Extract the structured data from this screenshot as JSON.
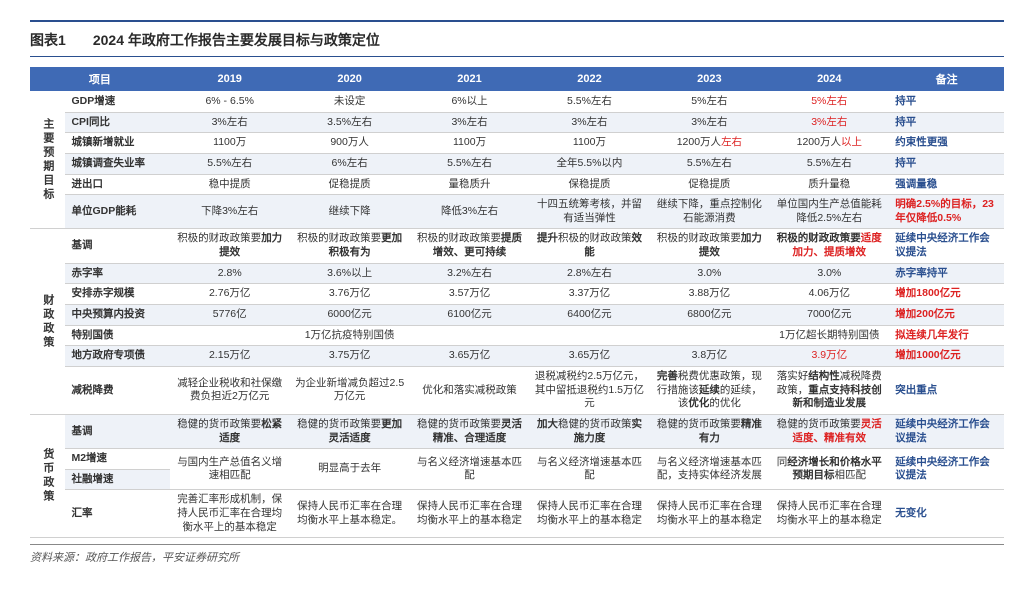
{
  "title": {
    "label": "图表1",
    "text": "2024 年政府工作报告主要发展目标与政策定位"
  },
  "headers": [
    "项目",
    "2019",
    "2020",
    "2021",
    "2022",
    "2023",
    "2024",
    "备注"
  ],
  "cats": [
    "主要预期目标",
    "财政政策",
    "货币政策"
  ],
  "rows": [
    {
      "cat": 0,
      "striped": 0,
      "item": "GDP增速",
      "c": [
        "6% - 6.5%",
        "未设定",
        "6%以上",
        "5.5%左右",
        "5%左右",
        {
          "t": "5%左右",
          "cls": "red"
        }
      ],
      "note": {
        "t": "持平",
        "cls": "blue-note"
      }
    },
    {
      "cat": 0,
      "striped": 1,
      "item": "CPI同比",
      "c": [
        "3%左右",
        "3.5%左右",
        "3%左右",
        "3%左右",
        "3%左右",
        {
          "t": "3%左右",
          "cls": "red"
        }
      ],
      "note": {
        "t": "持平",
        "cls": "blue-note"
      }
    },
    {
      "cat": 0,
      "striped": 0,
      "item": "城镇新增就业",
      "c": [
        "1100万",
        "900万人",
        "1100万",
        "1100万",
        [
          {
            "t": "1200万人"
          },
          {
            "t": "左右",
            "cls": "red"
          }
        ],
        [
          {
            "t": "1200万人"
          },
          {
            "t": "以上",
            "cls": "red"
          }
        ]
      ],
      "note": {
        "t": "约束性更强",
        "cls": "blue-note"
      }
    },
    {
      "cat": 0,
      "striped": 1,
      "item": "城镇调查失业率",
      "c": [
        "5.5%左右",
        "6%左右",
        "5.5%左右",
        "全年5.5%以内",
        "5.5%左右",
        "5.5%左右"
      ],
      "note": {
        "t": "持平",
        "cls": "blue-note"
      }
    },
    {
      "cat": 0,
      "striped": 0,
      "item": "进出口",
      "c": [
        "稳中提质",
        "促稳提质",
        "量稳质升",
        "保稳提质",
        "促稳提质",
        "质升量稳"
      ],
      "note": {
        "t": "强调量稳",
        "cls": "blue-note"
      }
    },
    {
      "cat": 0,
      "striped": 1,
      "item": "单位GDP能耗",
      "c": [
        "下降3%左右",
        "继续下降",
        "降低3%左右",
        "十四五统筹考核，并留有适当弹性",
        "继续下降，重点控制化石能源消费",
        "单位国内生产总值能耗降低2.5%左右"
      ],
      "note": [
        {
          "t": "明确2.5%的目标，",
          "cls": "red bold"
        },
        {
          "t": "23年仅降低0.5%",
          "cls": "red bold"
        }
      ]
    },
    {
      "cat": 1,
      "striped": 0,
      "item": "基调",
      "c": [
        [
          {
            "t": "积极的财政政策要"
          },
          {
            "t": "加力提效",
            "cls": "bold"
          }
        ],
        [
          {
            "t": "积极的财政政策要"
          },
          {
            "t": "更加积极有为",
            "cls": "bold"
          }
        ],
        [
          {
            "t": "积极的财政政策要"
          },
          {
            "t": "提质增效、更可持续",
            "cls": "bold"
          }
        ],
        [
          {
            "t": "提升",
            "cls": "bold"
          },
          {
            "t": "积极的财政政策"
          },
          {
            "t": "效能",
            "cls": "bold"
          }
        ],
        [
          {
            "t": "积极的财政政策要"
          },
          {
            "t": "加力提效",
            "cls": "bold"
          }
        ],
        [
          {
            "t": "积极的财政政策要",
            "cls": "bold"
          },
          {
            "t": "适度加力、提质增效",
            "cls": "red bold"
          }
        ]
      ],
      "note": {
        "t": "延续中央经济工作会议提法",
        "cls": "blue-note"
      }
    },
    {
      "cat": 1,
      "striped": 1,
      "item": "赤字率",
      "c": [
        "2.8%",
        "3.6%以上",
        "3.2%左右",
        "2.8%左右",
        "3.0%",
        "3.0%"
      ],
      "note": {
        "t": "赤字率持平",
        "cls": "blue-note"
      }
    },
    {
      "cat": 1,
      "striped": 0,
      "item": "安排赤字规模",
      "c": [
        "2.76万亿",
        "3.76万亿",
        "3.57万亿",
        "3.37万亿",
        "3.88万亿",
        "4.06万亿"
      ],
      "note": {
        "t": "增加1800亿元",
        "cls": "red bold"
      }
    },
    {
      "cat": 1,
      "striped": 1,
      "item": "中央预算内投资",
      "c": [
        "5776亿",
        "6000亿元",
        "6100亿元",
        "6400亿元",
        "6800亿元",
        "7000亿元"
      ],
      "note": {
        "t": "增加200亿元",
        "cls": "red bold"
      }
    },
    {
      "cat": 1,
      "striped": 0,
      "item": "特别国债",
      "c": [
        "",
        "1万亿抗疫特别国债",
        "",
        "",
        "",
        "1万亿超长期特别国债"
      ],
      "note": {
        "t": "拟连续几年发行",
        "cls": "red bold"
      }
    },
    {
      "cat": 1,
      "striped": 1,
      "item": "地方政府专项债",
      "c": [
        "2.15万亿",
        "3.75万亿",
        "3.65万亿",
        "3.65万亿",
        "3.8万亿",
        {
          "t": "3.9万亿",
          "cls": "red"
        }
      ],
      "note": {
        "t": "增加1000亿元",
        "cls": "red bold"
      }
    },
    {
      "cat": 1,
      "striped": 0,
      "item": "减税降费",
      "c": [
        "减轻企业税收和社保缴费负担近2万亿元",
        "为企业新增减负超过2.5万亿元",
        "优化和落实减税政策",
        "退税减税约2.5万亿元，其中留抵退税约1.5万亿元",
        [
          {
            "t": "完善",
            "cls": "bold"
          },
          {
            "t": "税费优惠政策，现行措施该"
          },
          {
            "t": "延续",
            "cls": "bold"
          },
          {
            "t": "的延续，该"
          },
          {
            "t": "优化",
            "cls": "bold"
          },
          {
            "t": "的优化"
          }
        ],
        [
          {
            "t": "落实好"
          },
          {
            "t": "结构性",
            "cls": "bold"
          },
          {
            "t": "减税降费政策，"
          },
          {
            "t": "重点支持科技创新和制造业发展",
            "cls": "bold"
          }
        ]
      ],
      "note": {
        "t": "突出重点",
        "cls": "blue-note"
      }
    },
    {
      "cat": 2,
      "striped": 1,
      "item": "基调",
      "c": [
        [
          {
            "t": "稳健的货币政策要"
          },
          {
            "t": "松紧适度",
            "cls": "bold"
          }
        ],
        [
          {
            "t": "稳健的货币政策要"
          },
          {
            "t": "更加灵活适度",
            "cls": "bold"
          }
        ],
        [
          {
            "t": "稳健的货币政策要"
          },
          {
            "t": "灵活精准、合理适度",
            "cls": "bold"
          }
        ],
        [
          {
            "t": "加大",
            "cls": "bold"
          },
          {
            "t": "稳健的货币政策"
          },
          {
            "t": "实施力度",
            "cls": "bold"
          }
        ],
        [
          {
            "t": "稳健的货币政策要"
          },
          {
            "t": "精准有力",
            "cls": "bold"
          }
        ],
        [
          {
            "t": "稳健的货币政策要"
          },
          {
            "t": "灵活适度、精准有效",
            "cls": "red bold"
          }
        ]
      ],
      "note": {
        "t": "延续中央经济工作会议提法",
        "cls": "blue-note"
      }
    },
    {
      "cat": 2,
      "striped": 0,
      "item": "M2增速",
      "c": [
        "与国内生产总值名义增速相匹配",
        "明显高于去年",
        "与名义经济增速基本匹配",
        "与名义经济增速基本匹配",
        "与名义经济增速基本匹配，支持实体经济发展",
        [
          {
            "t": "同"
          },
          {
            "t": "经济增长和价格水平预期目标",
            "cls": "bold"
          },
          {
            "t": "相匹配"
          }
        ]
      ],
      "note": {
        "t": "延续中央经济工作会议提法",
        "cls": "blue-note"
      },
      "merge_next": true
    },
    {
      "cat": 2,
      "striped": 1,
      "item": "社融增速",
      "skip": true
    },
    {
      "cat": 2,
      "striped": 0,
      "item": "汇率",
      "c": [
        "完善汇率形成机制，保持人民币汇率在合理均衡水平上的基本稳定",
        "保持人民币汇率在合理均衡水平上基本稳定。",
        "保持人民币汇率在合理均衡水平上的基本稳定",
        "保持人民币汇率在合理均衡水平上的基本稳定",
        "保持人民币汇率在合理均衡水平上的基本稳定",
        "保持人民币汇率在合理均衡水平上的基本稳定"
      ],
      "note": {
        "t": "无变化",
        "cls": "blue-note"
      }
    }
  ],
  "footer": "资料来源：政府工作报告，平安证券研究所",
  "colors": {
    "header_bg": "#3f6ab5",
    "border_blue": "#2a4f8f",
    "red": "#d22",
    "stripe": "#eef2f8",
    "row_border": "#d0d0d0"
  }
}
